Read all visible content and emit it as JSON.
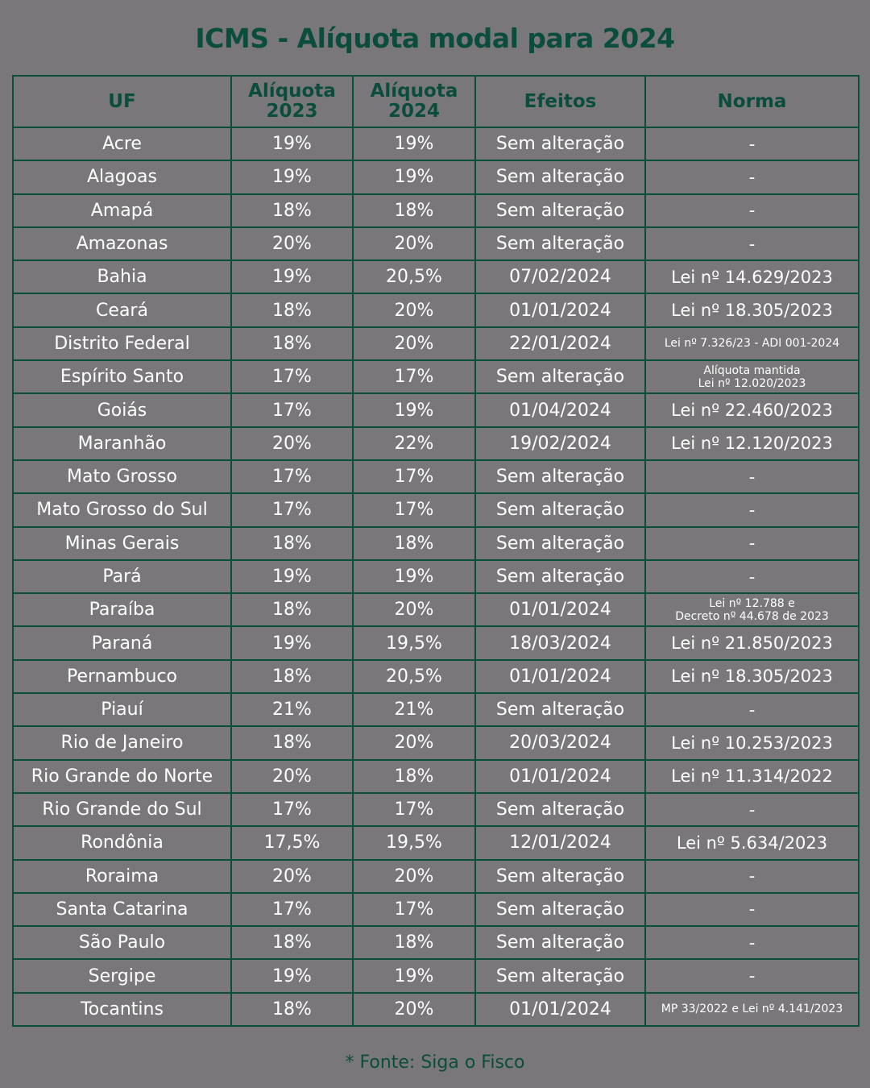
{
  "title": "ICMS - Alíquota modal para 2024",
  "colors": {
    "background": "#79777a",
    "accent": "#0b4d3c",
    "text": "#ffffff"
  },
  "headers": {
    "uf": "UF",
    "a2023_line1": "Alíquota",
    "a2023_line2": "2023",
    "a2024_line1": "Alíquota",
    "a2024_line2": "2024",
    "efeitos": "Efeitos",
    "norma": "Norma"
  },
  "rows": [
    {
      "uf": "Acre",
      "a2023": "19%",
      "a2024": "19%",
      "efeitos": "Sem alteração",
      "norma": [
        "-"
      ]
    },
    {
      "uf": "Alagoas",
      "a2023": "19%",
      "a2024": "19%",
      "efeitos": "Sem alteração",
      "norma": [
        "-"
      ]
    },
    {
      "uf": "Amapá",
      "a2023": "18%",
      "a2024": "18%",
      "efeitos": "Sem alteração",
      "norma": [
        "-"
      ]
    },
    {
      "uf": "Amazonas",
      "a2023": "20%",
      "a2024": "20%",
      "efeitos": "Sem alteração",
      "norma": [
        "-"
      ]
    },
    {
      "uf": "Bahia",
      "a2023": "19%",
      "a2024": "20,5%",
      "efeitos": "07/02/2024",
      "norma": [
        "Lei nº 14.629/2023"
      ]
    },
    {
      "uf": "Ceará",
      "a2023": "18%",
      "a2024": "20%",
      "efeitos": "01/01/2024",
      "norma": [
        "Lei nº 18.305/2023"
      ]
    },
    {
      "uf": "Distrito Federal",
      "a2023": "18%",
      "a2024": "20%",
      "efeitos": "22/01/2024",
      "norma": [
        "Lei nº 7.326/23 - ADI 001-2024"
      ],
      "norma_size": "tiny"
    },
    {
      "uf": "Espírito Santo",
      "a2023": "17%",
      "a2024": "17%",
      "efeitos": "Sem alteração",
      "norma": [
        "Alíquota mantida",
        "Lei nº 12.020/2023"
      ]
    },
    {
      "uf": "Goiás",
      "a2023": "17%",
      "a2024": "19%",
      "efeitos": "01/04/2024",
      "norma": [
        "Lei nº 22.460/2023"
      ]
    },
    {
      "uf": "Maranhão",
      "a2023": "20%",
      "a2024": "22%",
      "efeitos": "19/02/2024",
      "norma": [
        "Lei nº 12.120/2023"
      ]
    },
    {
      "uf": "Mato Grosso",
      "a2023": "17%",
      "a2024": "17%",
      "efeitos": "Sem alteração",
      "norma": [
        "-"
      ]
    },
    {
      "uf": "Mato Grosso do Sul",
      "a2023": "17%",
      "a2024": "17%",
      "efeitos": "Sem alteração",
      "norma": [
        "-"
      ]
    },
    {
      "uf": "Minas Gerais",
      "a2023": "18%",
      "a2024": "18%",
      "efeitos": "Sem alteração",
      "norma": [
        "-"
      ]
    },
    {
      "uf": "Pará",
      "a2023": "19%",
      "a2024": "19%",
      "efeitos": "Sem alteração",
      "norma": [
        "-"
      ]
    },
    {
      "uf": "Paraíba",
      "a2023": "18%",
      "a2024": "20%",
      "efeitos": "01/01/2024",
      "norma": [
        "Lei nº 12.788 e",
        "Decreto nº 44.678 de 2023"
      ]
    },
    {
      "uf": "Paraná",
      "a2023": "19%",
      "a2024": "19,5%",
      "efeitos": "18/03/2024",
      "norma": [
        "Lei nº 21.850/2023"
      ]
    },
    {
      "uf": "Pernambuco",
      "a2023": "18%",
      "a2024": "20,5%",
      "efeitos": "01/01/2024",
      "norma": [
        "Lei nº 18.305/2023"
      ]
    },
    {
      "uf": "Piauí",
      "a2023": "21%",
      "a2024": "21%",
      "efeitos": "Sem alteração",
      "norma": [
        "-"
      ]
    },
    {
      "uf": "Rio de Janeiro",
      "a2023": "18%",
      "a2024": "20%",
      "efeitos": "20/03/2024",
      "norma": [
        "Lei nº 10.253/2023"
      ]
    },
    {
      "uf": "Rio Grande do Norte",
      "a2023": "20%",
      "a2024": "18%",
      "efeitos": "01/01/2024",
      "norma": [
        "Lei nº 11.314/2022"
      ]
    },
    {
      "uf": "Rio Grande do Sul",
      "a2023": "17%",
      "a2024": "17%",
      "efeitos": "Sem alteração",
      "norma": [
        "-"
      ]
    },
    {
      "uf": "Rondônia",
      "a2023": "17,5%",
      "a2024": "19,5%",
      "efeitos": "12/01/2024",
      "norma": [
        "Lei nº 5.634/2023"
      ]
    },
    {
      "uf": "Roraima",
      "a2023": "20%",
      "a2024": "20%",
      "efeitos": "Sem alteração",
      "norma": [
        "-"
      ]
    },
    {
      "uf": "Santa Catarina",
      "a2023": "17%",
      "a2024": "17%",
      "efeitos": "Sem alteração",
      "norma": [
        "-"
      ]
    },
    {
      "uf": "São Paulo",
      "a2023": "18%",
      "a2024": "18%",
      "efeitos": "Sem alteração",
      "norma": [
        "-"
      ]
    },
    {
      "uf": "Sergipe",
      "a2023": "19%",
      "a2024": "19%",
      "efeitos": "Sem alteração",
      "norma": [
        "-"
      ]
    },
    {
      "uf": "Tocantins",
      "a2023": "18%",
      "a2024": "20%",
      "efeitos": "01/01/2024",
      "norma": [
        "MP 33/2022 e Lei nº 4.141/2023"
      ],
      "norma_size": "tiny"
    }
  ],
  "source": "* Fonte: Siga o Fisco"
}
